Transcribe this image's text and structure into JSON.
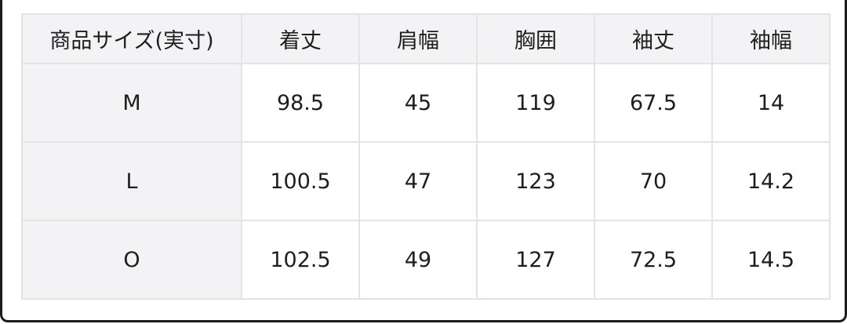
{
  "table": {
    "headers": [
      "商品サイズ(実寸)",
      "着丈",
      "肩幅",
      "胸囲",
      "袖丈",
      "袖幅"
    ],
    "rows": [
      [
        "M",
        "98.5",
        "45",
        "119",
        "67.5",
        "14"
      ],
      [
        "L",
        "100.5",
        "47",
        "123",
        "70",
        "14.2"
      ],
      [
        "O",
        "102.5",
        "49",
        "127",
        "72.5",
        "14.5"
      ]
    ]
  }
}
